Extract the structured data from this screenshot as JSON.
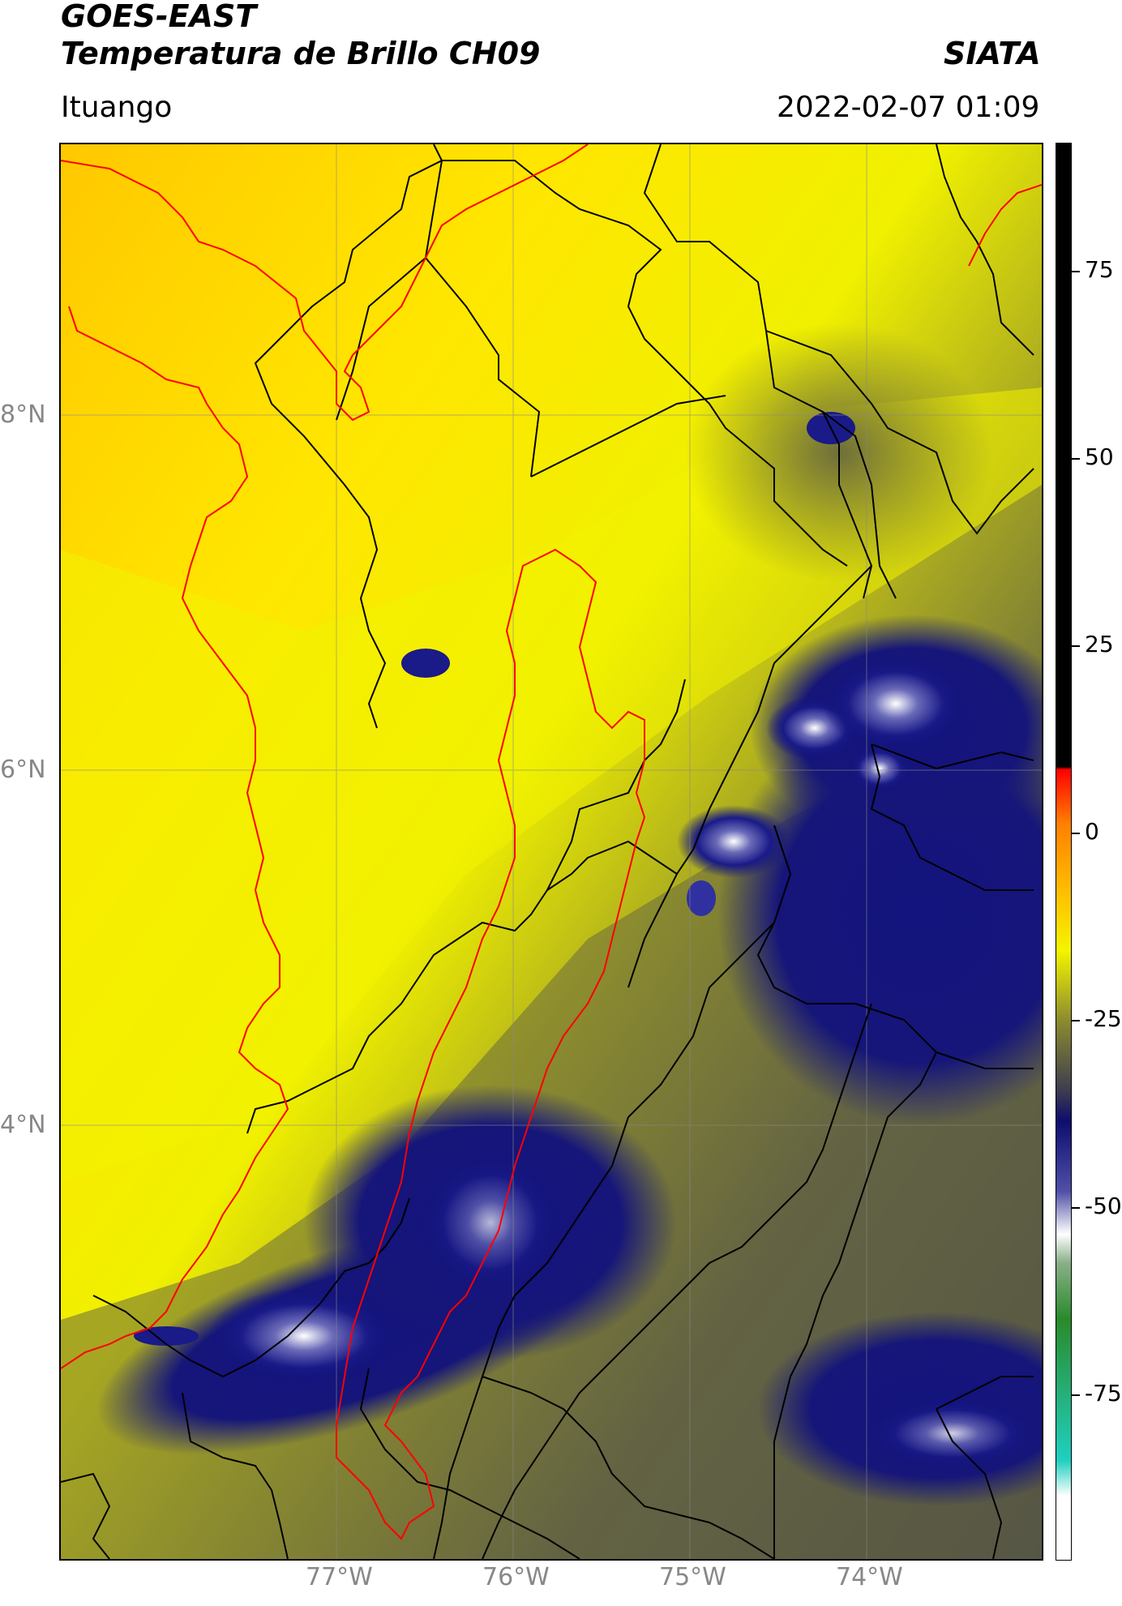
{
  "header": {
    "satellite": "GOES-EAST",
    "product": "Temperatura de Brillo CH09",
    "org": "SIATA",
    "region": "Ituango",
    "datetime": "2022-02-07 01:09"
  },
  "map": {
    "lon_labels": [
      "77°W",
      "76°W",
      "75°W",
      "74°W"
    ],
    "lat_labels": [
      "8°N",
      "6°N",
      "4°N"
    ]
  },
  "colorbar": {
    "ticks": [
      "75",
      "50",
      "25",
      "0",
      "-25",
      "-50",
      "-75"
    ],
    "stops": [
      "#000000",
      "#ff0000",
      "#ff7f00",
      "#ffe000",
      "#f2f200",
      "#7a7a3a",
      "#0d0d6e",
      "#4040a0",
      "#ffffff",
      "#3a8a3a",
      "#20d0c0",
      "#ffffff"
    ]
  },
  "colors": {
    "warm": "#f4f400",
    "cloud_deep": "#11117a",
    "boundary": "#000000",
    "basin": "#ff0000"
  }
}
